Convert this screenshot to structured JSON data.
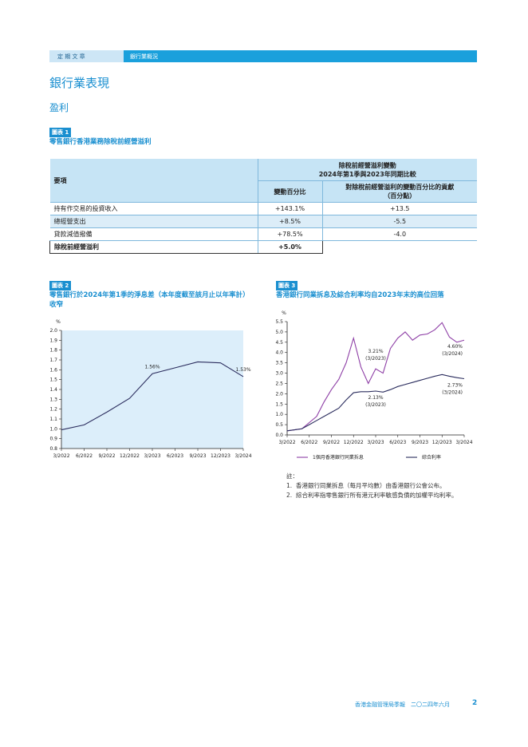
{
  "header": {
    "section": "定 期 文 章",
    "topic": "銀行業概況"
  },
  "title": "銀行業表現",
  "subtitle": "盈利",
  "exhibit1": {
    "badge": "圖表 1",
    "caption": "零售銀行香港業務除稅前經營溢利",
    "head": {
      "item": "要項",
      "group": [
        "除稅前經營溢利變動",
        "2024年第1季與2023年同期比較"
      ],
      "col1": "變動百分比",
      "col2": [
        "對除稅前經營溢利的變動百分比的貢獻",
        "（百分點）"
      ]
    },
    "rows": [
      [
        "持有作交易的投資收入",
        "+143.1%",
        "+13.5"
      ],
      [
        "總經營支出",
        "+8.5%",
        "-5.5"
      ],
      [
        "貸款減值撥備",
        "+78.5%",
        "-4.0"
      ],
      [
        "除稅前經營溢利",
        "+5.0%"
      ]
    ]
  },
  "chart_data": [
    {
      "type": "line",
      "badge": "圖表 2",
      "title": "零售銀行於2024年第1季的淨息差（本年度截至該月止以年率計）收窄",
      "ylabel": "%",
      "categories": [
        "3/2022",
        "6/2022",
        "9/2022",
        "12/2022",
        "3/2023",
        "6/2023",
        "9/2023",
        "12/2023",
        "3/2024"
      ],
      "values": [
        0.99,
        1.04,
        1.17,
        1.31,
        1.56,
        1.62,
        1.68,
        1.67,
        1.53
      ],
      "value_labels": [
        null,
        null,
        null,
        null,
        "1.56%",
        null,
        null,
        null,
        "1.53%"
      ],
      "color": "#2b2d5e",
      "background": "#dceefa",
      "ylim": [
        0.8,
        2.0
      ],
      "yticks": [
        0.8,
        0.9,
        {
          "value": 1,
          "label": "1.0"
        },
        1.1,
        1.2,
        1.3,
        1.4,
        1.5,
        1.6,
        1.7,
        1.8,
        1.9,
        {
          "value": 2,
          "label": "2.0"
        }
      ]
    },
    {
      "type": "line",
      "badge": "圖表 3",
      "title": "香港銀行同業拆息及綜合利率均自2023年末的高位回落",
      "ylabel": "%",
      "categories": [
        "3/2022",
        null,
        null,
        "6/2022",
        null,
        null,
        "9/2022",
        null,
        null,
        "12/2022",
        null,
        null,
        "3/2023",
        null,
        null,
        "6/2023",
        null,
        null,
        "9/2023",
        null,
        null,
        "12/2023",
        null,
        null,
        "3/2024"
      ],
      "series": [
        {
          "name": "1個月香港銀行同業拆息",
          "color": "#8e3fa6",
          "values": [
            0.2,
            0.25,
            0.3,
            0.6,
            0.9,
            1.6,
            2.2,
            2.7,
            3.5,
            4.7,
            3.3,
            2.5,
            3.21,
            3.0,
            4.2,
            4.7,
            5.0,
            4.6,
            4.85,
            4.9,
            5.1,
            5.45,
            4.75,
            4.5,
            4.6
          ],
          "value_labels": [
            null,
            null,
            null,
            null,
            null,
            null,
            null,
            null,
            null,
            null,
            null,
            null,
            [
              "3.21%",
              "(3/2023)"
            ],
            null,
            null,
            null,
            null,
            null,
            null,
            null,
            null,
            null,
            null,
            null,
            [
              "4.60%",
              "(3/2024)"
            ]
          ]
        },
        {
          "name": "綜合利率",
          "color": "#2b2d5e",
          "values": [
            0.2,
            0.25,
            0.3,
            0.5,
            0.7,
            0.9,
            1.1,
            1.3,
            1.7,
            2.05,
            2.1,
            2.1,
            2.13,
            2.08,
            2.2,
            2.35,
            2.45,
            2.55,
            2.65,
            2.75,
            2.85,
            2.93,
            2.85,
            2.78,
            2.73
          ],
          "value_labels": [
            null,
            null,
            null,
            null,
            null,
            null,
            null,
            null,
            null,
            null,
            null,
            null,
            [
              "2.13%",
              "(3/2023)"
            ],
            null,
            null,
            null,
            null,
            null,
            null,
            null,
            null,
            null,
            null,
            null,
            [
              "2.73%",
              "(3/2024)"
            ]
          ]
        }
      ],
      "ylim": [
        0,
        5.5
      ],
      "yticks": [
        {
          "value": 0,
          "label": "0.0"
        },
        0.5,
        {
          "value": 1,
          "label": "1.0"
        },
        1.5,
        {
          "value": 2,
          "label": "2.0"
        },
        2.5,
        {
          "value": 3,
          "label": "3.0"
        },
        3.5,
        {
          "value": 4,
          "label": "4.0"
        },
        4.5,
        {
          "value": 5,
          "label": "5.0"
        },
        5.5
      ]
    }
  ],
  "notes": {
    "label": "註：",
    "items": [
      [
        "1.",
        "香港銀行同業拆息（每月平均數）由香港銀行公會公布。"
      ],
      [
        "2.",
        "綜合利率指零售銀行所有港元利率敏感負債的加權平均利率。"
      ]
    ]
  },
  "footer": {
    "text": "香港金融管理局季報　二〇二四年六月",
    "page": "2"
  }
}
